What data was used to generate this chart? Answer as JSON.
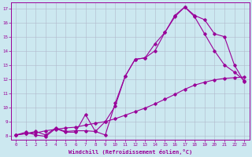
{
  "xlabel": "Windchill (Refroidissement éolien,°C)",
  "background_color": "#cce8f0",
  "line_color": "#990099",
  "xlim": [
    -0.5,
    23.5
  ],
  "ylim": [
    7.7,
    17.4
  ],
  "xticks": [
    0,
    1,
    2,
    3,
    4,
    5,
    6,
    7,
    8,
    9,
    10,
    11,
    12,
    13,
    14,
    15,
    16,
    17,
    18,
    19,
    20,
    21,
    22,
    23
  ],
  "yticks": [
    8,
    9,
    10,
    11,
    12,
    13,
    14,
    15,
    16,
    17
  ],
  "line1_x": [
    0,
    1,
    2,
    3,
    4,
    5,
    6,
    7,
    8,
    9,
    10,
    11,
    12,
    13,
    14,
    15,
    16,
    17,
    18,
    19,
    20,
    21,
    22,
    23
  ],
  "line1_y": [
    8.05,
    8.15,
    8.2,
    8.35,
    8.45,
    8.55,
    8.6,
    8.75,
    8.88,
    9.0,
    9.2,
    9.45,
    9.7,
    9.95,
    10.25,
    10.58,
    10.92,
    11.28,
    11.58,
    11.78,
    11.95,
    12.05,
    12.1,
    12.15
  ],
  "line2_x": [
    0,
    1,
    2,
    3,
    4,
    5,
    6,
    7,
    8,
    9,
    10,
    11,
    12,
    13,
    14,
    15,
    16,
    17,
    18,
    19,
    20,
    21,
    22,
    23
  ],
  "line2_y": [
    8.05,
    8.25,
    8.05,
    7.95,
    8.5,
    8.25,
    8.25,
    9.5,
    8.3,
    8.05,
    10.3,
    12.2,
    13.4,
    13.5,
    14.0,
    15.3,
    16.4,
    17.1,
    16.5,
    16.2,
    15.2,
    15.0,
    13.0,
    11.8
  ],
  "line3_x": [
    0,
    1,
    2,
    3,
    4,
    5,
    6,
    7,
    8,
    9,
    10,
    11,
    12,
    13,
    14,
    15,
    16,
    17,
    18,
    19,
    20,
    21,
    22,
    23
  ],
  "line3_y": [
    8.05,
    8.15,
    8.3,
    8.05,
    8.55,
    8.3,
    8.35,
    8.35,
    8.3,
    9.0,
    10.1,
    12.2,
    13.4,
    13.5,
    14.5,
    15.3,
    16.5,
    17.1,
    16.4,
    15.2,
    14.0,
    13.0,
    12.5,
    11.9
  ],
  "grid_color": "#b0b8cc",
  "marker": "D",
  "markersize": 1.8,
  "linewidth": 0.8,
  "xlabel_fontsize": 5.0,
  "tick_fontsize": 4.2
}
